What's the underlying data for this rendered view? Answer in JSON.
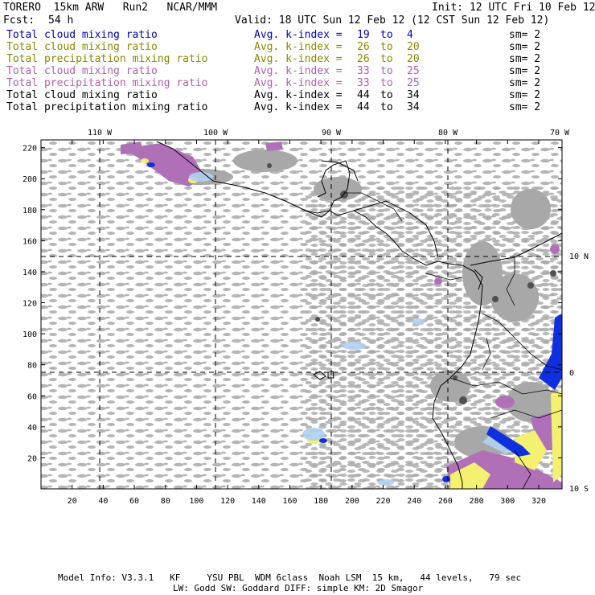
{
  "header": {
    "model": "TORERO  15km ARW   Run2   NCAR/MMM",
    "init": "Init: 12 UTC Fri 10 Feb 12",
    "fcst_label": "Fcst:",
    "fcst_hours": "54 h",
    "valid": "Valid: 18 UTC Sun 12 Feb 12 (12 CST Sun 12 Feb 12)"
  },
  "legend": [
    {
      "field": "Total cloud mixing ratio",
      "kindex": "Avg. k-index =",
      "from": "19",
      "to_word": "to",
      "to": "4",
      "sm": "sm= 2",
      "color": "#0000cc"
    },
    {
      "field": "Total cloud mixing ratio",
      "kindex": "Avg. k-index =",
      "from": "26",
      "to_word": "to",
      "to": "20",
      "sm": "sm= 2",
      "color": "#8a8a00"
    },
    {
      "field": "Total precipitation mixing ratio",
      "kindex": "Avg. k-index =",
      "from": "26",
      "to_word": "to",
      "to": "20",
      "sm": "sm= 2",
      "color": "#8a8a00"
    },
    {
      "field": "Total cloud mixing ratio",
      "kindex": "Avg. k-index =",
      "from": "33",
      "to_word": "to",
      "to": "25",
      "sm": "sm= 2",
      "color": "#b060b0"
    },
    {
      "field": "Total precipitation mixing ratio",
      "kindex": "Avg. k-index =",
      "from": "33",
      "to_word": "to",
      "to": "25",
      "sm": "sm= 2",
      "color": "#b060b0"
    },
    {
      "field": "Total cloud mixing ratio",
      "kindex": "Avg. k-index =",
      "from": "44",
      "to_word": "to",
      "to": "34",
      "sm": "sm= 2",
      "color": "#000000"
    },
    {
      "field": "Total precipitation mixing ratio",
      "kindex": "Avg. k-index =",
      "from": "44",
      "to_word": "to",
      "to": "34",
      "sm": "sm= 2",
      "color": "#000000"
    }
  ],
  "map": {
    "lon_labels": [
      "110 W",
      "100 W",
      "90 W",
      "80 W",
      "70 W"
    ],
    "lat_labels": [
      "10 N",
      "0",
      "10 S"
    ],
    "x_ticks": [
      "20",
      "40",
      "60",
      "80",
      "100",
      "120",
      "140",
      "160",
      "180",
      "200",
      "220",
      "240",
      "260",
      "280",
      "300",
      "320"
    ],
    "y_ticks": [
      "20",
      "40",
      "60",
      "80",
      "100",
      "120",
      "140",
      "160",
      "180",
      "200",
      "220"
    ],
    "colors": {
      "cloud": "#a8a8a8",
      "purple": "#b070b8",
      "yellow": "#f4f070",
      "blue": "#1030e0",
      "lightblue": "#b0d0f0",
      "dark": "#404040"
    }
  },
  "footer": {
    "line1": "Model Info: V3.3.1   KF     YSU PBL  WDM 6class  Noah LSM  15 km,   44 levels,   79 sec",
    "line2": "LW: Godd SW: Goddard DIFF: simple KM: 2D Smagor"
  }
}
